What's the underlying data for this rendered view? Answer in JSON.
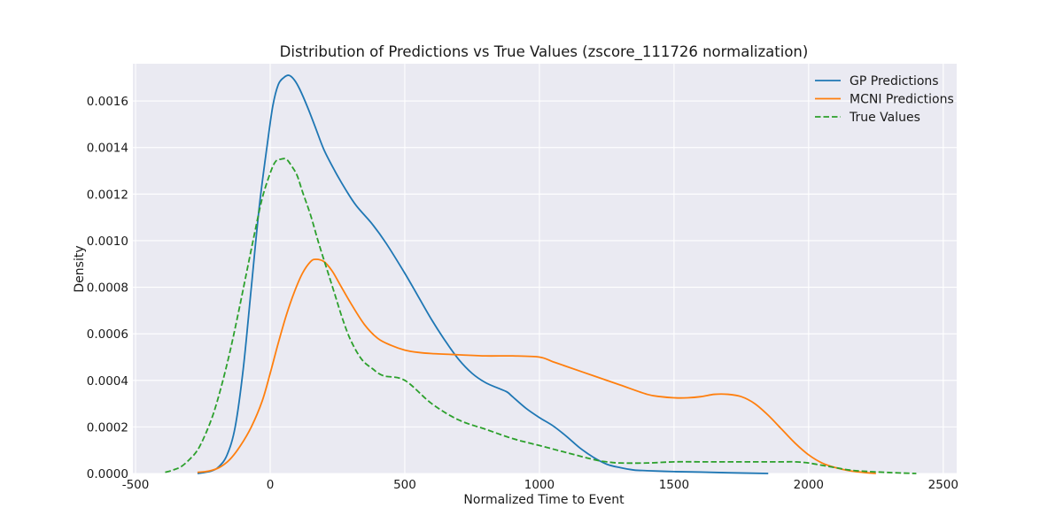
{
  "chart_data": {
    "type": "line",
    "title": "Distribution of Predictions vs True Values (zscore_111726 normalization)",
    "xlabel": "Normalized Time to Event",
    "ylabel": "Density",
    "xlim": [
      -510,
      2550
    ],
    "ylim": [
      0,
      0.00176
    ],
    "xticks": [
      -500,
      0,
      500,
      1000,
      1500,
      2000,
      2500
    ],
    "xtick_labels": [
      "-500",
      "0",
      "500",
      "1000",
      "1500",
      "2000",
      "2500"
    ],
    "yticks": [
      0,
      0.0002,
      0.0004,
      0.0006,
      0.0008,
      0.001,
      0.0012,
      0.0014,
      0.0016
    ],
    "ytick_labels": [
      "0.0000",
      "0.0002",
      "0.0004",
      "0.0006",
      "0.0008",
      "0.0010",
      "0.0012",
      "0.0014",
      "0.0016"
    ],
    "grid": true,
    "legend_position": "top-right",
    "background_color": "#eaeaf2",
    "series": [
      {
        "name": "GP Predictions",
        "color": "#1f77b4",
        "style": "solid",
        "x": [
          -270,
          -220,
          -190,
          -160,
          -130,
          -100,
          -70,
          -40,
          -10,
          10,
          30,
          50,
          70,
          90,
          110,
          140,
          170,
          200,
          240,
          280,
          320,
          380,
          430,
          500,
          550,
          600,
          650,
          700,
          750,
          800,
          850,
          880,
          900,
          950,
          1000,
          1050,
          1100,
          1150,
          1200,
          1250,
          1300,
          1350,
          1400,
          1500,
          1600,
          1700,
          1850
        ],
        "y": [
          0.0,
          1e-05,
          3e-05,
          8e-05,
          0.0002,
          0.00045,
          0.0008,
          0.00115,
          0.00142,
          0.00158,
          0.00167,
          0.0017,
          0.00171,
          0.00169,
          0.00165,
          0.00157,
          0.00148,
          0.00139,
          0.0013,
          0.00122,
          0.00115,
          0.00107,
          0.00099,
          0.00086,
          0.00076,
          0.00066,
          0.00057,
          0.00049,
          0.00043,
          0.00039,
          0.000365,
          0.00035,
          0.00033,
          0.00028,
          0.00024,
          0.000205,
          0.00016,
          0.00011,
          7e-05,
          4e-05,
          2.5e-05,
          1.5e-05,
          1.2e-05,
          8e-06,
          6e-06,
          3e-06,
          0.0
        ]
      },
      {
        "name": "MCNI Predictions",
        "color": "#ff7f0e",
        "style": "solid",
        "x": [
          -270,
          -230,
          -190,
          -150,
          -110,
          -70,
          -30,
          0,
          30,
          60,
          90,
          120,
          150,
          170,
          200,
          230,
          260,
          300,
          350,
          400,
          450,
          500,
          550,
          600,
          700,
          800,
          900,
          1000,
          1050,
          1100,
          1200,
          1300,
          1400,
          1450,
          1500,
          1550,
          1600,
          1650,
          1700,
          1750,
          1800,
          1850,
          1900,
          1950,
          2000,
          2050,
          2100,
          2150,
          2200,
          2250
        ],
        "y": [
          5e-06,
          1e-05,
          2.5e-05,
          6e-05,
          0.00012,
          0.0002,
          0.00031,
          0.00043,
          0.00056,
          0.00068,
          0.00078,
          0.00086,
          0.00091,
          0.00092,
          0.00091,
          0.00087,
          0.00081,
          0.00073,
          0.00064,
          0.00058,
          0.00055,
          0.00053,
          0.00052,
          0.000515,
          0.00051,
          0.000505,
          0.000505,
          0.0005,
          0.00048,
          0.00046,
          0.00042,
          0.00038,
          0.00034,
          0.00033,
          0.000325,
          0.000325,
          0.00033,
          0.00034,
          0.00034,
          0.00033,
          0.0003,
          0.00025,
          0.00019,
          0.00013,
          8e-05,
          4.5e-05,
          2.5e-05,
          1.2e-05,
          5e-06,
          0.0
        ]
      },
      {
        "name": "True Values",
        "color": "#2ca02c",
        "style": "dashed",
        "x": [
          -390,
          -360,
          -330,
          -300,
          -270,
          -240,
          -210,
          -180,
          -150,
          -120,
          -90,
          -60,
          -30,
          0,
          20,
          40,
          60,
          80,
          100,
          120,
          150,
          180,
          210,
          240,
          270,
          300,
          340,
          380,
          420,
          500,
          600,
          700,
          800,
          900,
          1000,
          1100,
          1200,
          1250,
          1300,
          1400,
          1500,
          1600,
          1700,
          1800,
          1900,
          1950,
          2000,
          2050,
          2100,
          2150,
          2200,
          2300,
          2400
        ],
        "y": [
          5e-06,
          1.5e-05,
          3e-05,
          6e-05,
          0.0001,
          0.00017,
          0.00026,
          0.00038,
          0.00052,
          0.00068,
          0.00085,
          0.00102,
          0.00118,
          0.00129,
          0.00134,
          0.00135,
          0.00135,
          0.00132,
          0.00128,
          0.00121,
          0.00111,
          0.00099,
          0.00088,
          0.00077,
          0.00066,
          0.00057,
          0.00049,
          0.00045,
          0.00042,
          0.0004,
          0.0003,
          0.00023,
          0.00019,
          0.00015,
          0.00012,
          9e-05,
          6e-05,
          5e-05,
          4.5e-05,
          4.5e-05,
          5e-05,
          5e-05,
          5e-05,
          5e-05,
          5e-05,
          5e-05,
          4.5e-05,
          3.5e-05,
          2.5e-05,
          1.5e-05,
          1e-05,
          4e-06,
          0.0
        ]
      }
    ]
  }
}
